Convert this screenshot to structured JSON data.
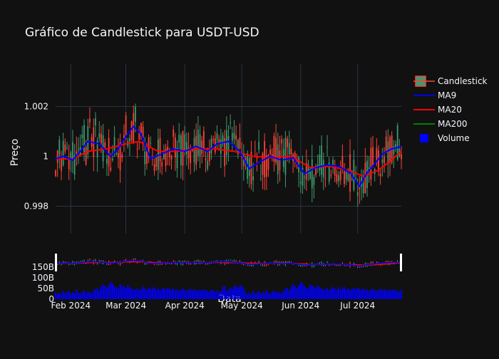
{
  "chart_data": {
    "type": "candlestick",
    "title": "Gráfico de Candlestick para USDT-USD",
    "xlabel": "Data",
    "ylabel": "Preço",
    "ylim": [
      0.9969,
      1.0037
    ],
    "yticks": [
      {
        "value": 0.998,
        "label": "0.998"
      },
      {
        "value": 1.0,
        "label": "1"
      },
      {
        "value": 1.002,
        "label": "1.002"
      }
    ],
    "xrange": [
      "2024-01-24",
      "2024-07-24"
    ],
    "xticks": [
      {
        "date": "2024-02-01",
        "label": "Feb 2024"
      },
      {
        "date": "2024-03-01",
        "label": "Mar 2024"
      },
      {
        "date": "2024-04-01",
        "label": "Apr 2024"
      },
      {
        "date": "2024-05-01",
        "label": "May 2024"
      },
      {
        "date": "2024-06-01",
        "label": "Jun 2024"
      },
      {
        "date": "2024-07-01",
        "label": "Jul 2024"
      }
    ],
    "volume_ticks": [
      {
        "value": 0,
        "label": "0"
      },
      {
        "value": 50,
        "label": "50B"
      },
      {
        "value": 100,
        "label": "100B"
      },
      {
        "value": 150,
        "label": "150B"
      }
    ],
    "legend_position": "top-right",
    "colors": {
      "up": "#3d9970",
      "down": "#ff4136",
      "ma9": "#0000ff",
      "ma20": "#ff0000",
      "ma200": "#008000",
      "volume": "#0000ff",
      "grid": "#283442",
      "text": "#f2f5fa"
    },
    "legend": [
      {
        "key": "candle",
        "label": "Candlestick"
      },
      {
        "key": "ma9",
        "label": "MA9"
      },
      {
        "key": "ma20",
        "label": "MA20"
      },
      {
        "key": "ma200",
        "label": "MA200"
      },
      {
        "key": "volume",
        "label": "Volume"
      }
    ],
    "ma9": [
      [
        "2024-01-24",
        0.9999
      ],
      [
        "2024-01-28",
        1.0
      ],
      [
        "2024-02-02",
        0.99985
      ],
      [
        "2024-02-06",
        1.0002
      ],
      [
        "2024-02-10",
        1.0006
      ],
      [
        "2024-02-16",
        1.0005
      ],
      [
        "2024-02-22",
        1.0
      ],
      [
        "2024-02-26",
        1.0003
      ],
      [
        "2024-03-01",
        1.0008
      ],
      [
        "2024-03-05",
        1.0012
      ],
      [
        "2024-03-09",
        1.0009
      ],
      [
        "2024-03-14",
        0.9999
      ],
      [
        "2024-03-20",
        1.0001
      ],
      [
        "2024-03-26",
        1.0003
      ],
      [
        "2024-04-01",
        1.0002
      ],
      [
        "2024-04-07",
        1.0004
      ],
      [
        "2024-04-13",
        1.0002
      ],
      [
        "2024-04-18",
        1.0005
      ],
      [
        "2024-04-24",
        1.0006
      ],
      [
        "2024-04-30",
        1.0002
      ],
      [
        "2024-05-05",
        0.9995
      ],
      [
        "2024-05-11",
        0.9998
      ],
      [
        "2024-05-16",
        1.0
      ],
      [
        "2024-05-22",
        0.99985
      ],
      [
        "2024-05-28",
        0.99995
      ],
      [
        "2024-06-03",
        0.9993
      ],
      [
        "2024-06-09",
        0.99955
      ],
      [
        "2024-06-15",
        0.99965
      ],
      [
        "2024-06-21",
        0.9996
      ],
      [
        "2024-06-27",
        0.99935
      ],
      [
        "2024-07-02",
        0.9988
      ],
      [
        "2024-07-06",
        0.99935
      ],
      [
        "2024-07-10",
        0.9997
      ],
      [
        "2024-07-14",
        1.0001
      ],
      [
        "2024-07-19",
        1.0003
      ],
      [
        "2024-07-24",
        1.0004
      ]
    ],
    "ma20": [
      [
        "2024-01-24",
        0.9999
      ],
      [
        "2024-02-02",
        0.9999
      ],
      [
        "2024-02-10",
        1.0002
      ],
      [
        "2024-02-20",
        1.0003
      ],
      [
        "2024-03-01",
        1.0005
      ],
      [
        "2024-03-08",
        1.0006
      ],
      [
        "2024-03-18",
        1.0002
      ],
      [
        "2024-03-28",
        1.0002
      ],
      [
        "2024-04-07",
        1.0003
      ],
      [
        "2024-04-17",
        1.0003
      ],
      [
        "2024-04-27",
        1.0002
      ],
      [
        "2024-05-07",
        1.0
      ],
      [
        "2024-05-17",
        0.99995
      ],
      [
        "2024-05-27",
        1.0
      ],
      [
        "2024-06-06",
        0.99955
      ],
      [
        "2024-06-16",
        0.9996
      ],
      [
        "2024-06-26",
        0.99945
      ],
      [
        "2024-07-04",
        0.9992
      ],
      [
        "2024-07-12",
        0.99945
      ],
      [
        "2024-07-18",
        0.9998
      ],
      [
        "2024-07-24",
        1.0002
      ]
    ],
    "volume": [
      [
        32,
        24,
        30,
        22,
        40,
        28,
        30,
        38,
        26,
        32,
        28,
        44,
        30,
        24,
        34,
        40,
        28,
        36,
        32,
        26
      ],
      [
        38,
        48,
        52,
        40,
        58,
        70,
        62,
        54,
        66,
        80,
        74,
        60,
        54,
        48,
        70,
        62,
        58,
        50,
        66,
        56
      ],
      [
        50,
        44,
        46,
        52,
        40,
        48,
        58,
        50,
        42,
        56,
        46,
        52,
        58,
        44,
        50,
        42,
        48,
        54,
        46,
        52
      ],
      [
        48,
        44,
        50,
        40,
        46,
        38,
        44,
        50,
        42,
        36,
        44,
        48,
        40,
        46,
        42,
        38,
        44,
        40,
        46,
        42
      ],
      [
        38,
        34,
        44,
        40,
        36,
        42,
        32,
        38,
        58,
        60,
        38,
        44,
        54,
        48,
        58,
        66,
        54,
        60,
        64,
        52
      ]
    ]
  }
}
